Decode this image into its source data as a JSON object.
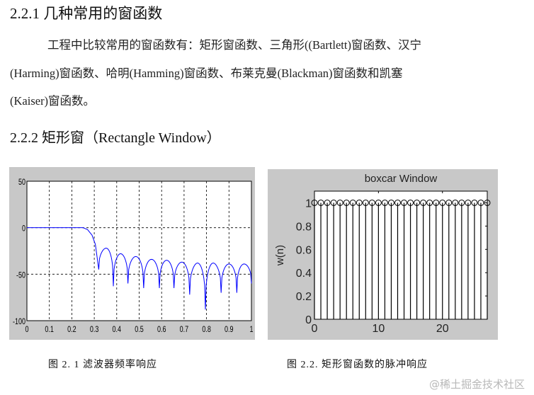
{
  "section_1": {
    "heading": "2.2.1  几种常用的窗函数",
    "paragraph_lines": [
      "工程中比较常用的窗函数有：矩形窗函数、三角形((Bartlett)窗函数、汉宁",
      "(Harming)窗函数、哈明(Hamming)窗函数、布莱克曼(Blackman)窗函数和凯塞",
      "(Kaiser)窗函数。"
    ]
  },
  "section_2": {
    "heading": "2.2.2    矩形窗（Rectangle  Window）"
  },
  "captions": {
    "figure_1": "图 2. 1   滤波器频率响应",
    "figure_2": "图 2.2.   矩形窗函数的脉冲响应"
  },
  "watermark": "@稀土掘金技术社区",
  "chart_data": [
    {
      "type": "line",
      "title": "",
      "xlabel": "",
      "ylabel": "",
      "xlim": [
        0,
        1
      ],
      "ylim": [
        -100,
        50
      ],
      "xticks": [
        "0",
        "0.1",
        "0.2",
        "0.3",
        "0.4",
        "0.5",
        "0.6",
        "0.7",
        "0.8",
        "0.9",
        "1"
      ],
      "yticks": [
        "50",
        "0",
        "-50",
        "-100"
      ],
      "grid": true,
      "line_color": "#0000ff",
      "passband": {
        "x": [
          0,
          0.25
        ],
        "y": 0
      },
      "transition": [
        [
          0.25,
          0
        ],
        [
          0.27,
          -2
        ],
        [
          0.29,
          -8
        ],
        [
          0.305,
          -18
        ],
        [
          0.32,
          -45
        ]
      ],
      "nulls": [
        [
          0.32,
          -45
        ],
        [
          0.385,
          -63
        ],
        [
          0.45,
          -60
        ],
        [
          0.52,
          -65
        ],
        [
          0.59,
          -65
        ],
        [
          0.655,
          -65
        ],
        [
          0.725,
          -72
        ],
        [
          0.795,
          -88
        ],
        [
          0.865,
          -70
        ],
        [
          0.935,
          -70
        ],
        [
          1.0,
          -60
        ]
      ],
      "sidelobe_peaks": [
        -22,
        -28,
        -31,
        -34,
        -35,
        -37,
        -38,
        -38,
        -39,
        -39
      ]
    },
    {
      "type": "stem",
      "title": "boxcar Window",
      "xlabel": "",
      "ylabel": "w(n)",
      "xlim": [
        0,
        27
      ],
      "ylim": [
        0,
        1.1
      ],
      "xticks": [
        "0",
        "10",
        "20"
      ],
      "yticks": [
        "0",
        "0.2",
        "0.4",
        "0.6",
        "0.8",
        "1"
      ],
      "x": [
        0,
        1,
        2,
        3,
        4,
        5,
        6,
        7,
        8,
        9,
        10,
        11,
        12,
        13,
        14,
        15,
        16,
        17,
        18,
        19,
        20,
        21,
        22,
        23,
        24,
        25,
        26,
        27
      ],
      "values": [
        1,
        1,
        1,
        1,
        1,
        1,
        1,
        1,
        1,
        1,
        1,
        1,
        1,
        1,
        1,
        1,
        1,
        1,
        1,
        1,
        1,
        1,
        1,
        1,
        1,
        1,
        1,
        1
      ],
      "grid": false
    }
  ]
}
